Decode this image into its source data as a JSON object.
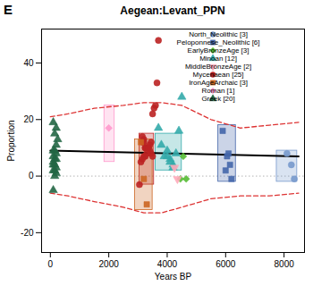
{
  "chart_data": {
    "type": "scatter",
    "title": "Aegean:Levant_PPN",
    "annotations": [
      "E"
    ],
    "xlabel": "Years BP",
    "ylabel": "Proportion",
    "xlim": [
      -300,
      8700
    ],
    "ylim": [
      -27,
      52
    ],
    "xticks": [
      0,
      2000,
      4000,
      6000,
      8000
    ],
    "yticks": [
      -20,
      0,
      20,
      40
    ],
    "grid": false,
    "legend": "upper right",
    "series": [
      {
        "name": "North_Neolithic [3]",
        "color": "#7799cc",
        "marker": "circle",
        "x": [
          8100,
          8250,
          8350
        ],
        "values": [
          8,
          4,
          -1
        ],
        "box": [
          7750,
          -2,
          700,
          11
        ]
      },
      {
        "name": "Peloponnese_Neolithic [6]",
        "color": "#4466aa",
        "marker": "square",
        "x": [
          5900,
          6100,
          6150,
          6050,
          6000,
          6200
        ],
        "values": [
          16,
          8,
          4,
          7,
          2,
          -1
        ],
        "box": [
          5750,
          -2,
          600,
          20
        ]
      },
      {
        "name": "EarlyBronzeAge [3]",
        "color": "#55bb33",
        "marker": "diamond",
        "x": [
          4450,
          4550,
          4650
        ],
        "values": [
          -1,
          7,
          -1
        ]
      },
      {
        "name": "Minoan [12]",
        "color": "#33aaaa",
        "marker": "triangle_up",
        "x": [
          3700,
          3800,
          3900,
          4000,
          4100,
          4200,
          4300,
          4400,
          4500,
          4200,
          4100,
          4000
        ],
        "values": [
          17,
          11,
          7,
          7,
          6,
          4,
          8,
          16,
          28,
          3,
          5,
          9
        ],
        "box": [
          3600,
          2,
          900,
          13
        ]
      },
      {
        "name": "MiddleBronzeAge [2]",
        "color": "#ffaabb",
        "marker": "triangle_down",
        "x": [
          4350,
          4250
        ],
        "values": [
          -1,
          3
        ]
      },
      {
        "name": "Mycenaean [25]",
        "color": "#bb2222",
        "marker": "circle",
        "x": [
          3150,
          3200,
          3250,
          3300,
          3350,
          3400,
          3450,
          3500,
          3150,
          3200,
          3250,
          3700,
          3650,
          3600,
          3550,
          3500,
          3450,
          3400,
          3350,
          3300,
          3250,
          3200,
          3150,
          3100,
          3050
        ],
        "values": [
          12,
          13,
          10,
          10,
          10,
          9,
          8,
          7,
          14,
          12,
          10,
          48,
          33,
          25,
          24,
          22,
          12,
          11,
          10,
          8,
          7,
          7,
          6,
          5,
          -3
        ],
        "box": [
          3050,
          -3,
          500,
          18
        ]
      },
      {
        "name": "IronAgeArchaic [3]",
        "color": "#cc6622",
        "marker": "square",
        "x": [
          3100,
          3200,
          3300
        ],
        "values": [
          12,
          -1,
          -10
        ],
        "box": [
          2900,
          -12,
          600,
          25
        ]
      },
      {
        "name": "Roman [1]",
        "color": "#ff99cc",
        "marker": "diamond",
        "x": [
          2000
        ],
        "values": [
          17
        ],
        "box": [
          1850,
          5,
          350,
          20
        ]
      },
      {
        "name": "Greek [20]",
        "color": "#226644",
        "marker": "triangle_up",
        "x": [
          100,
          200,
          150,
          250,
          200,
          100,
          150,
          200,
          100,
          150,
          200,
          100,
          150,
          100,
          200,
          150,
          100,
          200,
          150,
          100
        ],
        "values": [
          19,
          17,
          15,
          13,
          11,
          9,
          9,
          8,
          7,
          6,
          6,
          5,
          4,
          4,
          3,
          2,
          2,
          1,
          0,
          -5
        ]
      }
    ],
    "hline": {
      "y": 0,
      "color": "#aaaaaa",
      "line_style": "dotted"
    },
    "lines": [
      {
        "x": [
          0,
          600,
          1500,
          2500,
          3200,
          3800,
          4500,
          5500,
          6500,
          7500,
          8500
        ],
        "y": [
          21,
          22,
          24,
          25,
          26,
          26,
          25,
          20,
          17,
          18,
          19
        ],
        "color": "#dd3333",
        "line_style": "dashed"
      },
      {
        "x": [
          0,
          600,
          1500,
          2500,
          3200,
          3800,
          4500,
          5500,
          6500,
          7500,
          8500
        ],
        "y": [
          -6,
          -7,
          -9,
          -11,
          -13,
          -13,
          -11,
          -8,
          -7,
          -7,
          -6
        ],
        "color": "#dd3333",
        "line_style": "dashed"
      },
      {
        "x": [
          0,
          8500
        ],
        "y": [
          9,
          7
        ],
        "color": "black",
        "line_style": "solid"
      }
    ]
  }
}
